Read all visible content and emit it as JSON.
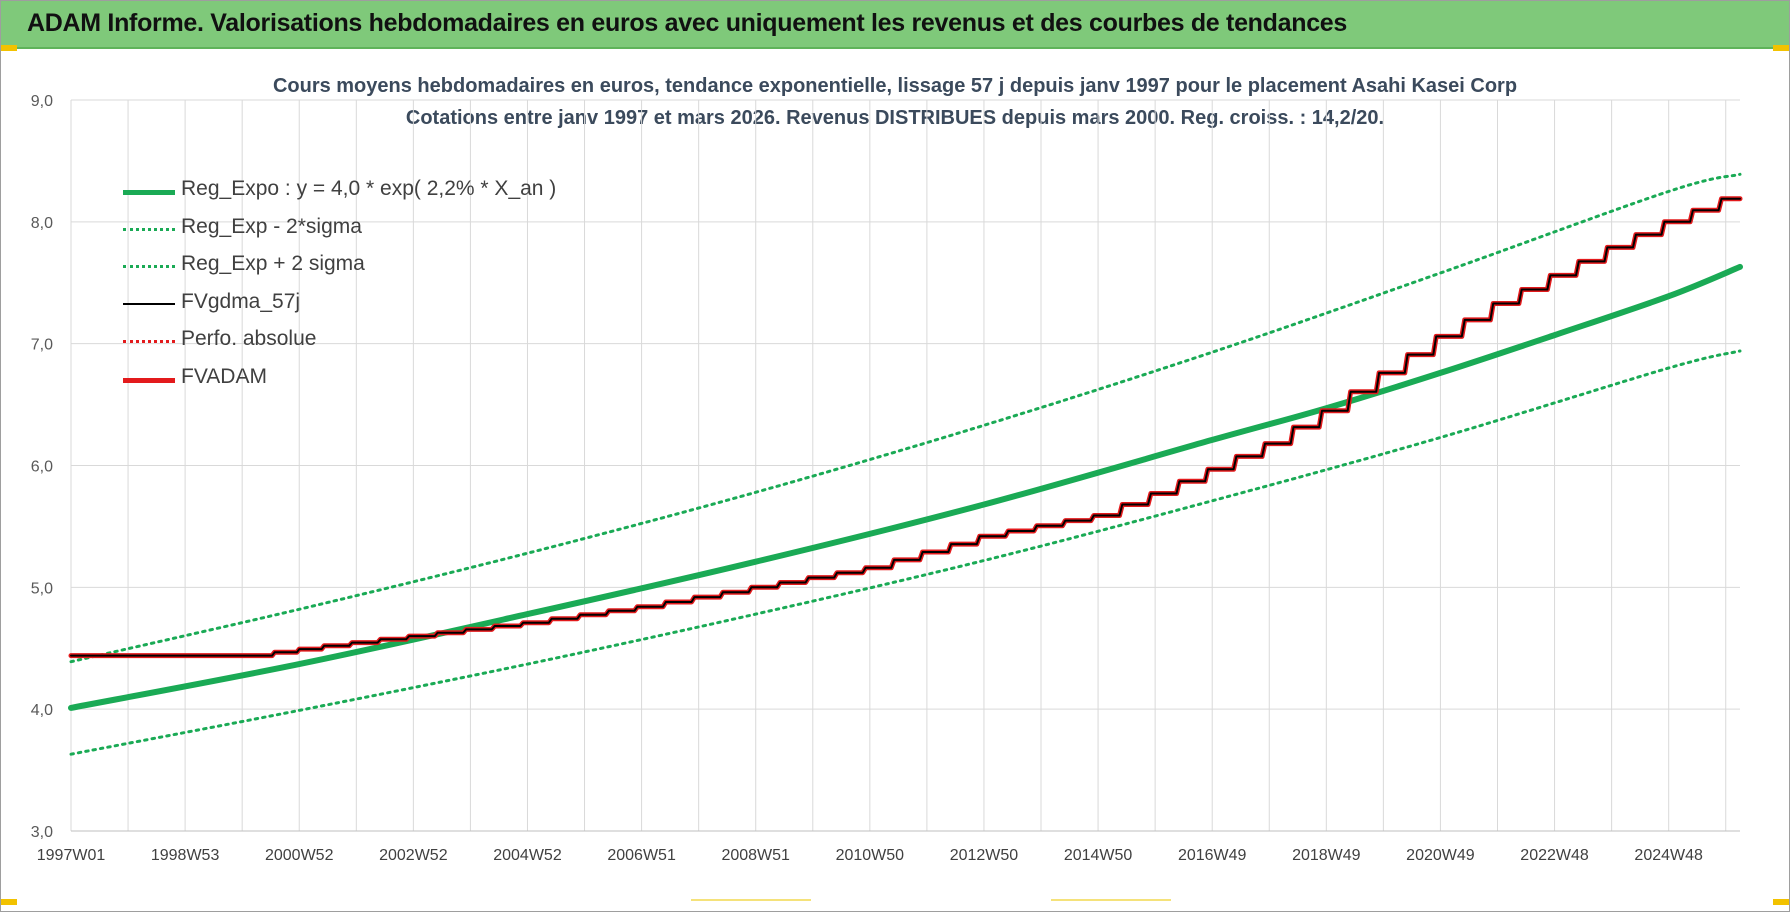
{
  "header": {
    "title": "ADAM Informe. Valorisations hebdomadaires en euros avec uniquement les revenus et des courbes de tendances"
  },
  "colors": {
    "header_bg": "#7fc97a",
    "trend": "#1aaa55",
    "fvadam": "#e31a1c",
    "fvgdma": "#000000",
    "perfo": "#e31a1c",
    "grid": "#d9d9d9"
  },
  "chart_data": {
    "type": "line",
    "title": "Cours moyens hebdomadaires en euros, tendance exponentielle, lissage 57 j depuis janv 1997 pour le placement Asahi Kasei Corp",
    "subtitle": "Cotations entre janv 1997 et mars 2026. Revenus DISTRIBUES depuis mars 2000. Reg. croiss. : 14,2/20.",
    "xlabel": "",
    "ylabel": "",
    "x_range": [
      1997.0,
      2026.25
    ],
    "ylim": [
      3.0,
      9.0
    ],
    "yticks": [
      "3,0",
      "4,0",
      "5,0",
      "6,0",
      "7,0",
      "8,0",
      "9,0"
    ],
    "xticks": [
      {
        "label": "1997W01",
        "year": 1997.0
      },
      {
        "label": "1998W53",
        "year": 1999.0
      },
      {
        "label": "2000W52",
        "year": 2001.0
      },
      {
        "label": "2002W52",
        "year": 2003.0
      },
      {
        "label": "2004W52",
        "year": 2005.0
      },
      {
        "label": "2006W51",
        "year": 2007.0
      },
      {
        "label": "2008W51",
        "year": 2009.0
      },
      {
        "label": "2010W50",
        "year": 2011.0
      },
      {
        "label": "2012W50",
        "year": 2013.0
      },
      {
        "label": "2014W50",
        "year": 2015.0
      },
      {
        "label": "2016W49",
        "year": 2017.0
      },
      {
        "label": "2018W49",
        "year": 2019.0
      },
      {
        "label": "2020W49",
        "year": 2021.0
      },
      {
        "label": "2022W48",
        "year": 2023.0
      },
      {
        "label": "2024W48",
        "year": 2025.0
      }
    ],
    "grid": true,
    "legend_position": "top-left",
    "series": [
      {
        "name": "Reg_Expo : y = 4,0 * exp( 2,2% *  X_an )",
        "style": "solid-thick",
        "color": "#1aaa55",
        "x": [
          1997,
          2001,
          2005,
          2009,
          2013,
          2017,
          2019,
          2021,
          2023,
          2025,
          2026.25
        ],
        "y": [
          4.01,
          4.37,
          4.78,
          5.21,
          5.68,
          6.21,
          6.47,
          6.76,
          7.07,
          7.39,
          7.63
        ]
      },
      {
        "name": "Reg_Exp - 2*sigma",
        "style": "dotted",
        "color": "#1aaa55",
        "x": [
          1997,
          2001,
          2005,
          2009,
          2013,
          2017,
          2021,
          2025,
          2026.25
        ],
        "y": [
          3.63,
          3.99,
          4.37,
          4.78,
          5.22,
          5.71,
          6.23,
          6.8,
          6.94
        ]
      },
      {
        "name": "Reg_Exp + 2 sigma",
        "style": "dotted",
        "color": "#1aaa55",
        "x": [
          1997,
          2001,
          2005,
          2009,
          2013,
          2017,
          2021,
          2025,
          2026.25
        ],
        "y": [
          4.39,
          4.82,
          5.28,
          5.78,
          6.33,
          6.93,
          7.58,
          8.25,
          8.39
        ]
      },
      {
        "name": "FVgdma_57j",
        "style": "solid-thin",
        "color": "#000000",
        "x": [
          1997,
          2000.2,
          2001.5,
          2003,
          2005,
          2007,
          2009,
          2011,
          2013,
          2015,
          2016,
          2017,
          2018,
          2019,
          2020,
          2021,
          2022,
          2023,
          2024,
          2025,
          2026,
          2026.25
        ],
        "y": [
          4.44,
          4.44,
          4.52,
          4.6,
          4.71,
          4.84,
          5.0,
          5.16,
          5.42,
          5.59,
          5.77,
          5.97,
          6.18,
          6.45,
          6.76,
          7.06,
          7.33,
          7.56,
          7.79,
          8.0,
          8.19,
          8.19
        ]
      },
      {
        "name": "Perfo. absolue",
        "style": "dotted",
        "color": "#e31a1c",
        "x": [],
        "y": []
      },
      {
        "name": "FVADAM",
        "style": "solid-thick",
        "color": "#e31a1c",
        "x": [
          1997,
          2000.2,
          2001.5,
          2003,
          2005,
          2007,
          2009,
          2011,
          2013,
          2015,
          2016,
          2017,
          2018,
          2019,
          2020,
          2021,
          2022,
          2023,
          2024,
          2025,
          2026,
          2026.25
        ],
        "y": [
          4.44,
          4.44,
          4.52,
          4.6,
          4.71,
          4.84,
          5.0,
          5.16,
          5.42,
          5.59,
          5.77,
          5.97,
          6.18,
          6.45,
          6.76,
          7.06,
          7.33,
          7.56,
          7.79,
          8.0,
          8.19,
          8.19
        ]
      }
    ]
  }
}
